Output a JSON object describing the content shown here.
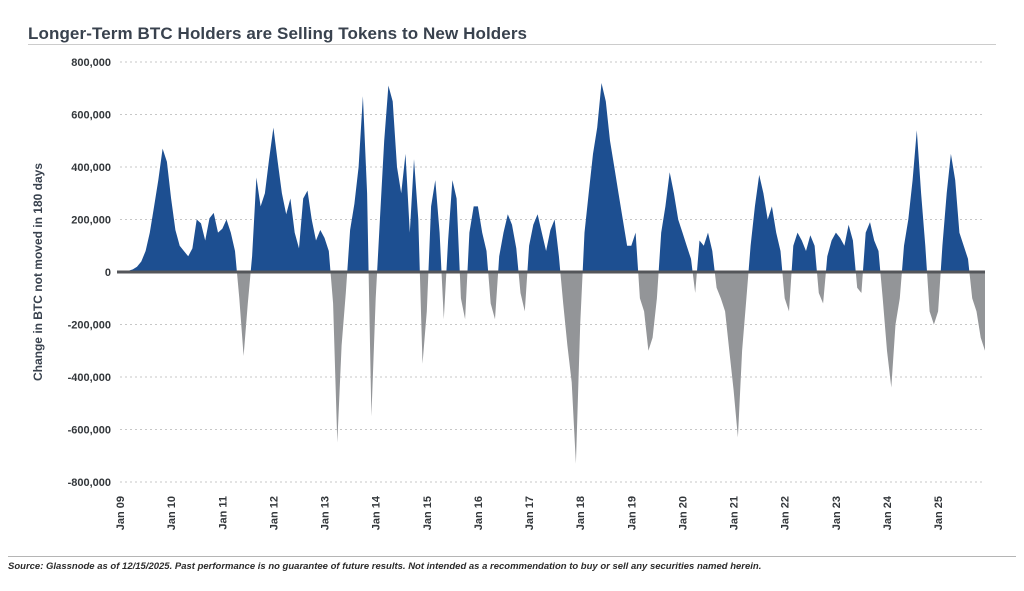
{
  "header": {
    "title": "Longer-Term BTC Holders are Selling Tokens to New Holders"
  },
  "footer": {
    "text": "Source: Glassnode as of 12/15/2025. Past performance is no guarantee of future results. Not intended as a recommendation to buy or sell any securities named herein."
  },
  "chart_data": {
    "type": "area",
    "title": "Longer-Term BTC Holders are Selling Tokens to New Holders",
    "xlabel": "",
    "ylabel": "Change in BTC not moved in 180 days",
    "ylim": [
      -800000,
      800000
    ],
    "ytick_step": 200000,
    "grid": "dotted horizontal",
    "legend": "none",
    "y_tick_labels": [
      "800,000",
      "600,000",
      "400,000",
      "200,000",
      "0",
      "-200,000",
      "-400,000",
      "-600,000",
      "-800,000"
    ],
    "x_tick_labels": [
      "Jan 09",
      "Jan 10",
      "Jan 11",
      "Jan 12",
      "Jan 13",
      "Jan 14",
      "Jan 15",
      "Jan 16",
      "Jan 17",
      "Jan 18",
      "Jan 19",
      "Jan 20",
      "Jan 21",
      "Jan 22",
      "Jan 23",
      "Jan 24",
      "Jan 25"
    ],
    "x_start": "2009-01",
    "x_end": "2025-12",
    "frequency": "monthly",
    "colors": {
      "positive": "#1D4F91",
      "negative": "#939598",
      "grid": "#C7C7C7",
      "zero_line": "#54565A",
      "text": "#33373B"
    },
    "values": [
      0,
      2000,
      5000,
      10000,
      20000,
      40000,
      80000,
      150000,
      250000,
      350000,
      470000,
      420000,
      280000,
      160000,
      100000,
      80000,
      60000,
      90000,
      200000,
      185000,
      120000,
      205000,
      225000,
      150000,
      165000,
      200000,
      150000,
      80000,
      -100000,
      -320000,
      -120000,
      60000,
      360000,
      250000,
      300000,
      430000,
      550000,
      420000,
      300000,
      220000,
      280000,
      150000,
      90000,
      280000,
      310000,
      200000,
      120000,
      160000,
      130000,
      80000,
      -120000,
      -650000,
      -280000,
      -80000,
      160000,
      260000,
      400000,
      670000,
      300000,
      -550000,
      -100000,
      200000,
      500000,
      710000,
      650000,
      400000,
      300000,
      450000,
      150000,
      430000,
      200000,
      -350000,
      -150000,
      250000,
      350000,
      150000,
      -180000,
      120000,
      350000,
      280000,
      -100000,
      -180000,
      150000,
      250000,
      250000,
      150000,
      80000,
      -120000,
      -180000,
      60000,
      150000,
      220000,
      180000,
      90000,
      -80000,
      -150000,
      100000,
      180000,
      220000,
      150000,
      80000,
      160000,
      200000,
      60000,
      -120000,
      -280000,
      -420000,
      -730000,
      -200000,
      150000,
      300000,
      450000,
      550000,
      720000,
      650000,
      500000,
      400000,
      300000,
      200000,
      100000,
      100000,
      150000,
      -100000,
      -150000,
      -300000,
      -250000,
      -100000,
      150000,
      250000,
      380000,
      300000,
      200000,
      150000,
      100000,
      50000,
      -80000,
      120000,
      100000,
      150000,
      80000,
      -60000,
      -100000,
      -150000,
      -300000,
      -450000,
      -630000,
      -300000,
      -100000,
      100000,
      250000,
      370000,
      300000,
      200000,
      250000,
      150000,
      80000,
      -100000,
      -150000,
      100000,
      150000,
      120000,
      80000,
      140000,
      100000,
      -80000,
      -120000,
      60000,
      120000,
      150000,
      130000,
      100000,
      180000,
      120000,
      -60000,
      -80000,
      150000,
      190000,
      120000,
      80000,
      -100000,
      -300000,
      -440000,
      -200000,
      -100000,
      100000,
      200000,
      350000,
      540000,
      300000,
      100000,
      -150000,
      -200000,
      -150000,
      100000,
      300000,
      450000,
      350000,
      150000,
      100000,
      50000,
      -100000,
      -150000,
      -250000,
      -300000
    ]
  }
}
